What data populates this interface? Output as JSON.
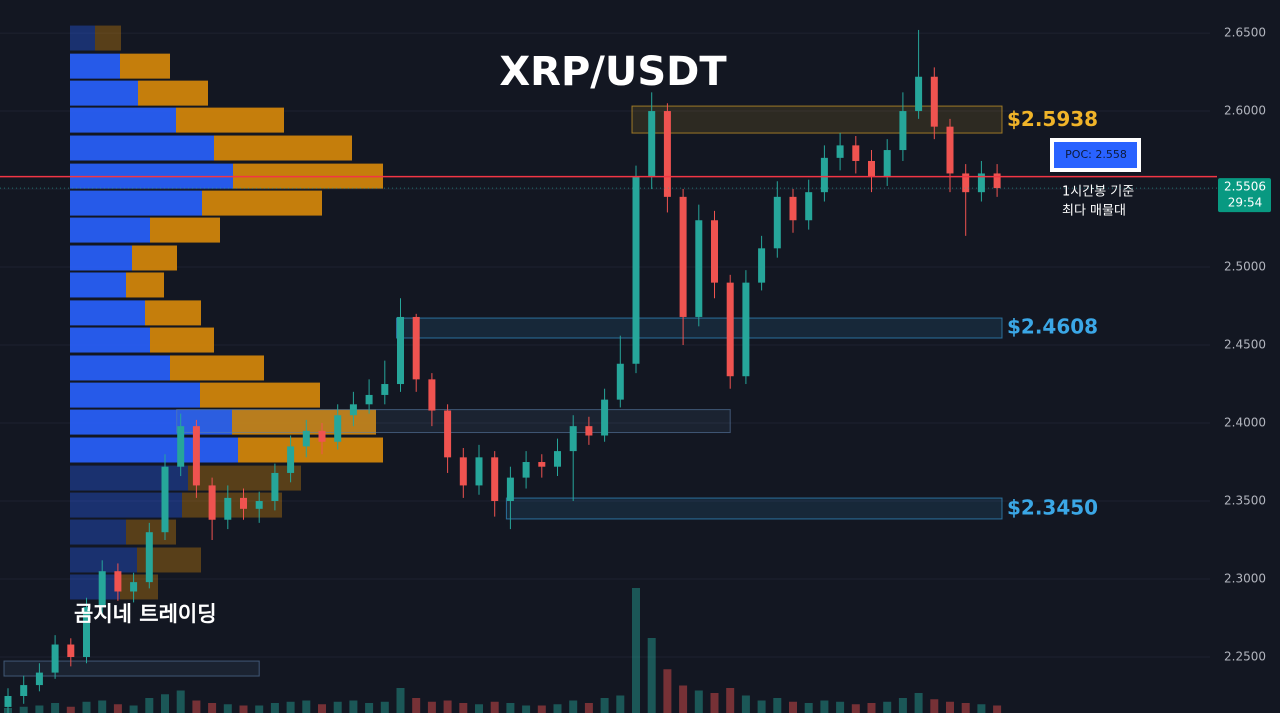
{
  "chart_data": {
    "type": "candlestick",
    "title": "XRP/USDT",
    "watermark": "곰지네 트레이딩",
    "ylim": [
      2.2141,
      2.6712
    ],
    "yticks": [
      {
        "value": 2.25,
        "label": "2.2500"
      },
      {
        "value": 2.3,
        "label": "2.3000"
      },
      {
        "value": 2.35,
        "label": "2.3500"
      },
      {
        "value": 2.4,
        "label": "2.4000"
      },
      {
        "value": 2.45,
        "label": "2.4500"
      },
      {
        "value": 2.5,
        "label": "2.5000"
      },
      {
        "value": 2.55,
        "label": "2.5500"
      },
      {
        "value": 2.6,
        "label": "2.6000"
      },
      {
        "value": 2.65,
        "label": "2.6500"
      }
    ],
    "grid": true,
    "up_color": "#26a69a",
    "down_color": "#ef5350",
    "open": [
      2.218,
      2.225,
      2.232,
      2.24,
      2.258,
      2.25,
      2.282,
      2.305,
      2.292,
      2.298,
      2.33,
      2.372,
      2.398,
      2.36,
      2.338,
      2.352,
      2.345,
      2.35,
      2.368,
      2.385,
      2.395,
      2.388,
      2.405,
      2.412,
      2.418,
      2.425,
      2.468,
      2.428,
      2.408,
      2.378,
      2.36,
      2.378,
      2.35,
      2.365,
      2.375,
      2.372,
      2.382,
      2.398,
      2.392,
      2.415,
      2.438,
      2.558,
      2.6,
      2.545,
      2.468,
      2.53,
      2.49,
      2.43,
      2.49,
      2.512,
      2.545,
      2.53,
      2.548,
      2.57,
      2.578,
      2.568,
      2.558,
      2.575,
      2.6,
      2.622,
      2.59,
      2.56,
      2.548,
      2.56
    ],
    "high": [
      2.23,
      2.238,
      2.246,
      2.264,
      2.262,
      2.288,
      2.312,
      2.31,
      2.304,
      2.336,
      2.38,
      2.406,
      2.402,
      2.365,
      2.36,
      2.358,
      2.356,
      2.374,
      2.392,
      2.402,
      2.4,
      2.412,
      2.42,
      2.428,
      2.44,
      2.48,
      2.47,
      2.432,
      2.412,
      2.384,
      2.386,
      2.382,
      2.372,
      2.382,
      2.38,
      2.39,
      2.405,
      2.404,
      2.422,
      2.456,
      2.565,
      2.612,
      2.605,
      2.55,
      2.54,
      2.536,
      2.495,
      2.498,
      2.52,
      2.555,
      2.55,
      2.556,
      2.578,
      2.586,
      2.584,
      2.575,
      2.582,
      2.612,
      2.652,
      2.628,
      2.595,
      2.566,
      2.568,
      2.566
    ],
    "low": [
      2.214,
      2.22,
      2.228,
      2.236,
      2.244,
      2.246,
      2.278,
      2.286,
      2.285,
      2.294,
      2.325,
      2.366,
      2.352,
      2.325,
      2.332,
      2.338,
      2.336,
      2.344,
      2.362,
      2.378,
      2.38,
      2.383,
      2.398,
      2.406,
      2.412,
      2.42,
      2.42,
      2.398,
      2.368,
      2.352,
      2.354,
      2.34,
      2.332,
      2.358,
      2.365,
      2.366,
      2.35,
      2.386,
      2.388,
      2.41,
      2.432,
      2.55,
      2.535,
      2.45,
      2.462,
      2.48,
      2.422,
      2.425,
      2.485,
      2.506,
      2.522,
      2.524,
      2.542,
      2.562,
      2.56,
      2.548,
      2.552,
      2.568,
      2.595,
      2.582,
      2.548,
      2.52,
      2.542,
      2.545
    ],
    "close": [
      2.225,
      2.232,
      2.24,
      2.258,
      2.25,
      2.282,
      2.305,
      2.292,
      2.298,
      2.33,
      2.372,
      2.398,
      2.36,
      2.338,
      2.352,
      2.345,
      2.35,
      2.368,
      2.385,
      2.395,
      2.388,
      2.405,
      2.412,
      2.418,
      2.425,
      2.468,
      2.428,
      2.408,
      2.378,
      2.36,
      2.378,
      2.35,
      2.365,
      2.375,
      2.372,
      2.382,
      2.398,
      2.392,
      2.415,
      2.438,
      2.558,
      2.6,
      2.545,
      2.468,
      2.53,
      2.49,
      2.43,
      2.49,
      2.512,
      2.545,
      2.53,
      2.548,
      2.57,
      2.578,
      2.568,
      2.558,
      2.575,
      2.6,
      2.622,
      2.59,
      2.56,
      2.548,
      2.56,
      2.5506
    ],
    "volume": [
      4,
      5,
      6,
      8,
      5,
      9,
      10,
      7,
      6,
      12,
      15,
      18,
      10,
      8,
      7,
      6,
      6,
      8,
      9,
      10,
      7,
      9,
      10,
      8,
      9,
      20,
      12,
      9,
      10,
      8,
      7,
      9,
      8,
      6,
      6,
      7,
      10,
      8,
      12,
      14,
      100,
      60,
      35,
      22,
      18,
      16,
      20,
      14,
      10,
      12,
      9,
      8,
      10,
      9,
      7,
      8,
      9,
      12,
      16,
      11,
      9,
      8,
      7,
      6
    ],
    "volume_profile": {
      "price": [
        2.6468,
        2.6288,
        2.6115,
        2.5942,
        2.5763,
        2.5583,
        2.541,
        2.5237,
        2.5058,
        2.4885,
        2.4706,
        2.4532,
        2.4353,
        2.4179,
        2.4006,
        2.3827,
        2.3647,
        2.3474,
        2.3301,
        2.3122,
        2.2949
      ],
      "buy": [
        25,
        50,
        68,
        106,
        144,
        163,
        132,
        80,
        62,
        56,
        75,
        80,
        100,
        130,
        162,
        168,
        118,
        112,
        56,
        67,
        50
      ],
      "sell": [
        26,
        50,
        70,
        108,
        138,
        150,
        120,
        70,
        45,
        38,
        56,
        64,
        94,
        120,
        144,
        145,
        113,
        100,
        50,
        64,
        38
      ],
      "row_height": 0.0173,
      "value_area": [
        1,
        15
      ],
      "buy_color": "#2962ff",
      "sell_color": "#d98a0a"
    },
    "zones": [
      {
        "top": 2.6032,
        "bottom": 2.5859,
        "start": 40,
        "end": 63,
        "value": 2.5938,
        "label": "$2.5938",
        "color": "#f0b429"
      },
      {
        "top": 2.4673,
        "bottom": 2.4545,
        "start": 25,
        "end": 63,
        "value": 2.4608,
        "label": "$2.4608",
        "color": "#3ba7e6"
      },
      {
        "top": 2.3519,
        "bottom": 2.3385,
        "start": 32,
        "end": 63,
        "value": 2.345,
        "label": "$2.3450",
        "color": "#3ba7e6"
      },
      {
        "top": 2.4086,
        "bottom": 2.3939,
        "start": 11,
        "end": 46,
        "color": "#5b7fa8"
      },
      {
        "top": 2.2474,
        "bottom": 2.2378,
        "start": 0,
        "end": 16,
        "color": "#5b7fa8"
      }
    ],
    "poc": {
      "value": 2.558,
      "label": "POC: 2.558",
      "color": "#f23645",
      "note": [
        "1시간봉 기준",
        "최다 매물대"
      ]
    },
    "last_price": {
      "value": 2.5506,
      "countdown": "29:54"
    }
  }
}
